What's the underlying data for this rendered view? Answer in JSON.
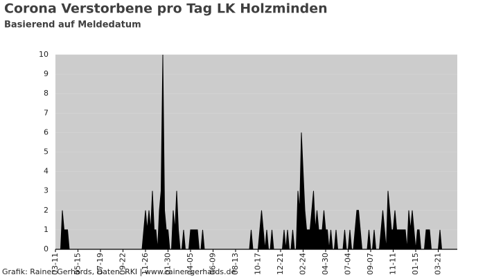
{
  "chart_data": {
    "type": "area",
    "title": "Corona Verstorbene pro Tag LK Holzminden",
    "subtitle": "Basierend auf Meldedatum",
    "source": "Grafik: Rainer Gerhards, Daten: RKI | www.rainer-gerhards.de",
    "categories": [
      "03-11",
      null,
      null,
      null,
      null,
      null,
      null,
      null,
      null,
      null,
      null,
      null,
      null,
      "05-15",
      null,
      null,
      null,
      null,
      null,
      null,
      null,
      null,
      null,
      null,
      null,
      null,
      "07-19",
      null,
      null,
      null,
      null,
      null,
      null,
      null,
      null,
      null,
      null,
      null,
      null,
      "09-22",
      null,
      null,
      null,
      null,
      null,
      null,
      null,
      null,
      null,
      null,
      null,
      null,
      "11-26",
      null,
      null,
      null,
      null,
      null,
      null,
      null,
      null,
      null,
      null,
      null,
      null,
      "01-30",
      null,
      null,
      null,
      null,
      null,
      null,
      null,
      null,
      null,
      null,
      null,
      null,
      "04-05",
      null,
      null,
      null,
      null,
      null,
      null,
      null,
      null,
      null,
      null,
      null,
      null,
      "06-09",
      null,
      null,
      null,
      null,
      null,
      null,
      null,
      null,
      null,
      null,
      null,
      null,
      "08-13",
      null,
      null,
      null,
      null,
      null,
      null,
      null,
      null,
      null,
      null,
      null,
      null,
      "10-17",
      null,
      null,
      null,
      null,
      null,
      null,
      null,
      null,
      null,
      null,
      null,
      null,
      "12-21",
      null,
      null,
      null,
      null,
      null,
      null,
      null,
      null,
      null,
      null,
      null,
      null,
      "02-24",
      null,
      null,
      null,
      null,
      null,
      null,
      null,
      null,
      null,
      null,
      null,
      null,
      "04-30",
      null,
      null,
      null,
      null,
      null,
      null,
      null,
      null,
      null,
      null,
      null,
      null,
      "07-04",
      null,
      null,
      null,
      null,
      null,
      null,
      null,
      null,
      null,
      null,
      null,
      null,
      "09-07",
      null,
      null,
      null,
      null,
      null,
      null,
      null,
      null,
      null,
      null,
      null,
      null,
      "11-11",
      null,
      null,
      null,
      null,
      null,
      null,
      null,
      null,
      null,
      null,
      null,
      null,
      "01-15",
      null,
      null,
      null,
      null,
      null,
      null,
      null,
      null,
      null,
      null,
      null,
      null,
      "03-21",
      null,
      null,
      null,
      null,
      null,
      null,
      null,
      null,
      null,
      null
    ],
    "series": [
      {
        "color": "#000000",
        "values": [
          0,
          0,
          0,
          0,
          2,
          1,
          1,
          1,
          0,
          0,
          0,
          0,
          0,
          0,
          0,
          0,
          0,
          0,
          0,
          0,
          0,
          0,
          0,
          0,
          0,
          0,
          0,
          0,
          0,
          0,
          0,
          0,
          0,
          0,
          0,
          0,
          0,
          0,
          0,
          0,
          0,
          0,
          0,
          0,
          0,
          0,
          0,
          0,
          0,
          0,
          0,
          1,
          2,
          1,
          2,
          1,
          3,
          1,
          1,
          0,
          2,
          3,
          10,
          2,
          1,
          1,
          0,
          0,
          2,
          1,
          3,
          1,
          0,
          0,
          1,
          0,
          0,
          0,
          1,
          1,
          1,
          1,
          1,
          0,
          0,
          1,
          0,
          0,
          0,
          0,
          0,
          0,
          0,
          0,
          0,
          0,
          0,
          0,
          0,
          0,
          0,
          0,
          0,
          0,
          0,
          0,
          0,
          0,
          0,
          0,
          0,
          0,
          0,
          1,
          0,
          0,
          0,
          0,
          1,
          2,
          1,
          0,
          1,
          0,
          0,
          1,
          0,
          0,
          0,
          0,
          0,
          0,
          1,
          0,
          1,
          0,
          0,
          1,
          0,
          0,
          3,
          2,
          6,
          4,
          2,
          1,
          1,
          1,
          2,
          3,
          1,
          2,
          1,
          1,
          1,
          2,
          1,
          1,
          0,
          1,
          0,
          0,
          1,
          0,
          0,
          0,
          0,
          1,
          0,
          0,
          1,
          0,
          0,
          1,
          2,
          2,
          1,
          0,
          0,
          0,
          0,
          1,
          0,
          0,
          1,
          0,
          0,
          0,
          1,
          2,
          1,
          0,
          3,
          2,
          1,
          1,
          2,
          1,
          1,
          1,
          1,
          1,
          1,
          0,
          2,
          1,
          2,
          1,
          0,
          1,
          1,
          0,
          0,
          0,
          1,
          1,
          1,
          0,
          0,
          0,
          0,
          0,
          1,
          0,
          0,
          0,
          0,
          0,
          0,
          0,
          0,
          0
        ]
      }
    ],
    "ylim": [
      0,
      10
    ],
    "yticks": [
      0,
      1,
      2,
      3,
      4,
      5,
      6,
      7,
      8,
      9,
      10
    ],
    "grid": true,
    "plot_background": "#cccccc"
  }
}
